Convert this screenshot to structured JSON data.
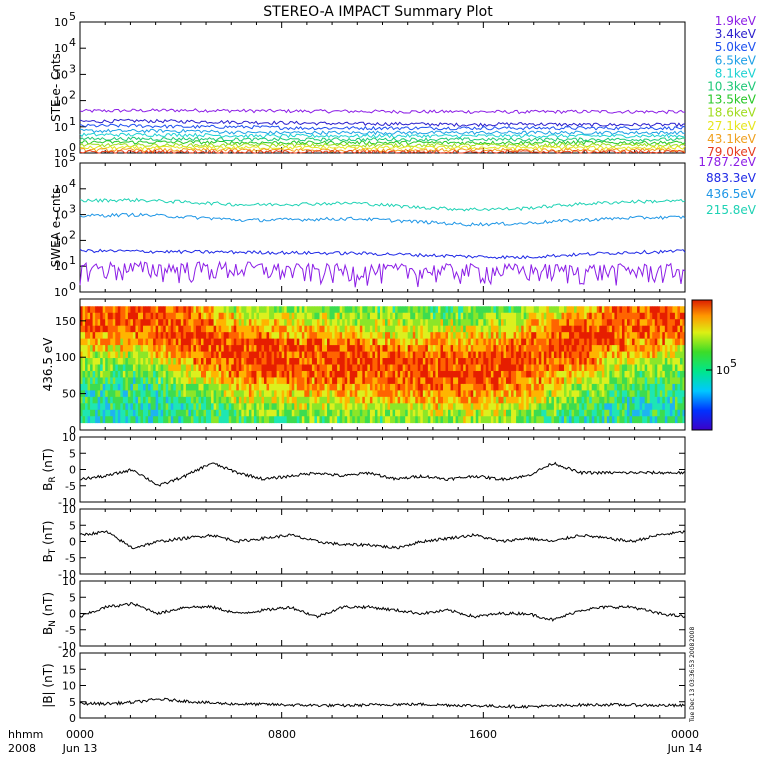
{
  "chart_data": [
    {
      "type": "line",
      "title": "STEREO-A IMPACT Summary Plot",
      "ylabel": "STE e- Cnts",
      "yscale": "log",
      "ylim": [
        1,
        100000
      ],
      "ytick_labels": [
        "10",
        "10",
        "10",
        "10",
        "10",
        "10"
      ],
      "ytick_exps": [
        "0",
        "1",
        "2",
        "3",
        "4",
        "5"
      ],
      "series": [
        {
          "name": "1.9keV",
          "color": "#8c1ee6",
          "values": [
            40,
            42,
            43,
            41,
            40,
            39,
            38,
            38,
            37,
            38,
            38,
            37
          ]
        },
        {
          "name": "3.4keV",
          "color": "#2a1ecc",
          "values": [
            16,
            17,
            16,
            15,
            14,
            13,
            13,
            12,
            13,
            12,
            12,
            12
          ]
        },
        {
          "name": "5.0keV",
          "color": "#1e50f0",
          "values": [
            11,
            11,
            10,
            10,
            9,
            9,
            9,
            9,
            9,
            9,
            9,
            9
          ]
        },
        {
          "name": "6.5keV",
          "color": "#1ea0e6",
          "values": [
            7,
            7,
            7,
            6,
            6,
            6,
            6,
            6,
            6,
            6,
            6,
            6
          ]
        },
        {
          "name": "8.1keV",
          "color": "#1ed2d2",
          "values": [
            5,
            5,
            5,
            4.5,
            4.5,
            4.5,
            4.5,
            4.5,
            4.5,
            4.5,
            4.5,
            4.5
          ]
        },
        {
          "name": "10.3keV",
          "color": "#1ec878",
          "values": [
            3.5,
            3.5,
            3.5,
            3.3,
            3.3,
            3.3,
            3.3,
            3.3,
            3.3,
            3.3,
            3.3,
            3.3
          ]
        },
        {
          "name": "13.5keV",
          "color": "#28c828",
          "values": [
            2.6,
            2.6,
            2.6,
            2.5,
            2.5,
            2.5,
            2.5,
            2.5,
            2.5,
            2.5,
            2.5,
            2.5
          ]
        },
        {
          "name": "18.6keV",
          "color": "#a0dc1e",
          "values": [
            2,
            2,
            2,
            2,
            2,
            2,
            2,
            2,
            2,
            2,
            2,
            2
          ]
        },
        {
          "name": "27.1keV",
          "color": "#e6e61e",
          "values": [
            1.6,
            1.6,
            1.6,
            1.6,
            1.6,
            1.6,
            1.6,
            1.6,
            1.6,
            1.6,
            1.6,
            1.6
          ]
        },
        {
          "name": "43.1keV",
          "color": "#f0a01e",
          "values": [
            1.3,
            1.3,
            1.3,
            1.3,
            1.3,
            1.3,
            1.3,
            1.3,
            1.3,
            1.3,
            1.3,
            1.3
          ]
        },
        {
          "name": "79.0keV",
          "color": "#e63c1e",
          "values": [
            1.1,
            1.1,
            1.1,
            1.1,
            1.1,
            1.1,
            1.1,
            1.1,
            1.1,
            1.1,
            1.1,
            1.1
          ]
        }
      ]
    },
    {
      "type": "line",
      "ylabel": "SWEA e- cnts",
      "yscale": "log",
      "ylim": [
        1,
        100000
      ],
      "ytick_labels": [
        "10",
        "10",
        "10",
        "10",
        "10",
        "10"
      ],
      "ytick_exps": [
        "0",
        "1",
        "2",
        "3",
        "4",
        "5"
      ],
      "series": [
        {
          "name": "1787.2eV",
          "color": "#8c1ee6",
          "values": [
            6,
            6,
            6,
            6,
            5,
            5,
            5,
            5,
            5,
            5,
            5,
            5
          ]
        },
        {
          "name": "883.3eV",
          "color": "#1e28e6",
          "values": [
            40,
            38,
            36,
            35,
            33,
            32,
            28,
            24,
            22,
            28,
            35,
            38
          ]
        },
        {
          "name": "436.5eV",
          "color": "#1e96e6",
          "values": [
            900,
            1000,
            800,
            600,
            650,
            700,
            550,
            420,
            450,
            600,
            750,
            800
          ]
        },
        {
          "name": "215.8eV",
          "color": "#1ed2b4",
          "values": [
            3500,
            3700,
            3000,
            2400,
            2600,
            2800,
            2000,
            1600,
            1700,
            2500,
            3200,
            3400
          ]
        }
      ]
    },
    {
      "type": "heatmap",
      "ylabel": "436.5 eV",
      "ylim": [
        0,
        180
      ],
      "ytick_labels": [
        "0",
        "50",
        "100",
        "150"
      ],
      "colorbar_label": "10",
      "colorbar_exp": "5",
      "columns": 12,
      "peak_pitch_angle": [
        160,
        165,
        130,
        100,
        95,
        90,
        85,
        80,
        90,
        120,
        150,
        160
      ]
    },
    {
      "type": "line",
      "ylabel": "B",
      "ylabel_sub": "R",
      "ylabel_unit": " (nT)",
      "ylim": [
        -10,
        10
      ],
      "ytick_labels": [
        "10",
        "5",
        "0",
        "-5",
        "-10"
      ],
      "values": [
        -3,
        -2,
        0,
        -5,
        -2,
        2,
        -1,
        -3,
        -2,
        -1,
        -2,
        -1,
        -3,
        -2,
        -3,
        -2,
        -3,
        -2,
        2,
        -1,
        -1,
        -1,
        -1,
        -1
      ]
    },
    {
      "type": "line",
      "ylabel": "B",
      "ylabel_sub": "T",
      "ylabel_unit": " (nT)",
      "ylim": [
        -10,
        10
      ],
      "ytick_labels": [
        "10",
        "5",
        "0",
        "-5",
        "-10"
      ],
      "values": [
        2,
        3,
        -2,
        0,
        1,
        2,
        0,
        1,
        2,
        0,
        -1,
        -1,
        -2,
        0,
        1,
        2,
        0,
        1,
        0,
        2,
        1,
        0,
        2,
        3
      ]
    },
    {
      "type": "line",
      "ylabel": "B",
      "ylabel_sub": "N",
      "ylabel_unit": " (nT)",
      "ylim": [
        -10,
        10
      ],
      "ytick_labels": [
        "10",
        "5",
        "0",
        "-5",
        "-10"
      ],
      "values": [
        -1,
        2,
        3,
        0,
        2,
        2,
        0,
        1,
        2,
        -1,
        2,
        2,
        1,
        0,
        1,
        -1,
        0,
        0,
        -2,
        1,
        2,
        2,
        0,
        -1
      ]
    },
    {
      "type": "line",
      "ylabel": "|B| (nT)",
      "ylim": [
        0,
        20
      ],
      "ytick_labels": [
        "20",
        "15",
        "10",
        "5",
        "0"
      ],
      "values": [
        4.5,
        4.4,
        4.8,
        5.8,
        5.2,
        4.6,
        4.3,
        4.2,
        4.0,
        3.9,
        3.8,
        4.0,
        4.2,
        4.2,
        4.0,
        3.8,
        3.6,
        3.5,
        3.7,
        4.0,
        4.1,
        4.0,
        3.9,
        3.8
      ]
    }
  ],
  "time_axis": {
    "label_line1": "hhmm",
    "label_line2": "2008",
    "ticks": [
      {
        "top": "0000",
        "bottom": "Jun 13"
      },
      {
        "top": "0800",
        "bottom": ""
      },
      {
        "top": "1600",
        "bottom": ""
      },
      {
        "top": "0000",
        "bottom": "Jun 14"
      }
    ]
  },
  "side_annotation_1": "2008",
  "side_annotation_2": "Tue Dec 13 03:36:53 2008"
}
